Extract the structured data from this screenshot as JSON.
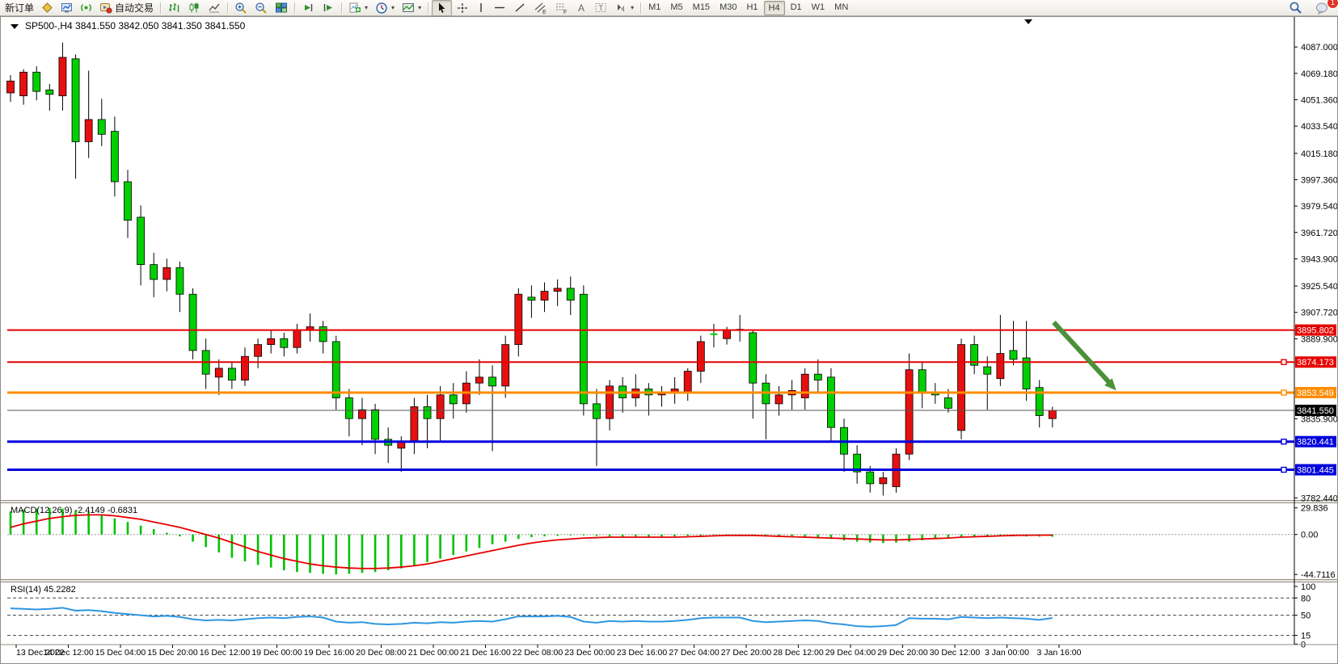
{
  "toolbar": {
    "new_order_label": "新订单",
    "autotrading_label": "自动交易",
    "chat_badge": "1",
    "timeframes": [
      "M1",
      "M5",
      "M15",
      "M30",
      "H1",
      "H4",
      "D1",
      "W1",
      "MN"
    ],
    "active_timeframe": "H4"
  },
  "chart_title": {
    "symbol_period": "SP500-,H4",
    "ohlc_quote": "3841.550 3842.050 3841.350 3841.550"
  },
  "colors": {
    "candle_up": "#e61010",
    "candle_down": "#00cf00",
    "macd_histogram": "#00c300",
    "macd_signal": "#e60000",
    "rsi_line": "#2e96e0",
    "hline_red": "#e60000",
    "hline_orange": "#ff8c00",
    "hline_blue": "#0000dc",
    "current_price_badge": "#000000",
    "arrow": "#4a9138"
  },
  "chart_data": [
    {
      "type": "candlestick",
      "title": "SP500-,H4",
      "ohlc_current": [
        3841.55,
        3842.05,
        3841.35,
        3841.55
      ],
      "ylim": [
        3781,
        4098
      ],
      "grid": false,
      "y_axis_ticks": [
        "4087.000",
        "4069.180",
        "4051.360",
        "4033.540",
        "4015.180",
        "3997.360",
        "3979.540",
        "3961.720",
        "3943.900",
        "3925.540",
        "3907.720",
        "3889.900",
        "3835.900",
        "3782.440"
      ],
      "x_labels": [
        "13 Dec 2022",
        "14 Dec 12:00",
        "15 Dec 04:00",
        "15 Dec 20:00",
        "16 Dec 12:00",
        "19 Dec 00:00",
        "19 Dec 16:00",
        "20 Dec 08:00",
        "21 Dec 00:00",
        "21 Dec 16:00",
        "22 Dec 08:00",
        "23 Dec 00:00",
        "23 Dec 16:00",
        "27 Dec 04:00",
        "27 Dec 20:00",
        "28 Dec 12:00",
        "29 Dec 04:00",
        "29 Dec 20:00",
        "30 Dec 12:00",
        "3 Jan 00:00",
        "3 Jan 16:00"
      ],
      "hlines": [
        {
          "value": 3895.802,
          "label": "3895.802",
          "color": "#e60000",
          "width": 2,
          "marker": false,
          "current": false
        },
        {
          "value": 3874.173,
          "label": "3874.173",
          "color": "#e60000",
          "width": 2,
          "marker": true,
          "current": false
        },
        {
          "value": 3853.549,
          "label": "3853.549",
          "color": "#ff8c00",
          "width": 3,
          "marker": true,
          "current": false
        },
        {
          "value": 3841.55,
          "label": "3841.550",
          "color": "#000000",
          "width": 1,
          "marker": false,
          "current": true
        },
        {
          "value": 3820.441,
          "label": "3820.441",
          "color": "#0000dc",
          "width": 3,
          "marker": true,
          "current": false
        },
        {
          "value": 3801.445,
          "label": "3801.445",
          "color": "#0000dc",
          "width": 3,
          "marker": true,
          "current": false
        }
      ],
      "annotations": [
        {
          "type": "arrow",
          "from_bar": 80.1,
          "from_price": 3901,
          "to_bar": 84.9,
          "to_price": 3855,
          "color": "#4a9138"
        }
      ],
      "candles": [
        [
          4056,
          4068,
          4050,
          4064
        ],
        [
          4054,
          4072,
          4048,
          4070
        ],
        [
          4070,
          4074,
          4051,
          4057
        ],
        [
          4058,
          4062,
          4044,
          4055
        ],
        [
          4054,
          4090,
          4044,
          4080
        ],
        [
          4079,
          4082,
          3998,
          4023
        ],
        [
          4023,
          4071,
          4012,
          4038
        ],
        [
          4038,
          4052,
          4020,
          4028
        ],
        [
          4030,
          4040,
          3986,
          3996
        ],
        [
          3996,
          4004,
          3958,
          3970
        ],
        [
          3972,
          3980,
          3926,
          3940
        ],
        [
          3940,
          3948,
          3918,
          3930
        ],
        [
          3930,
          3944,
          3922,
          3938
        ],
        [
          3938,
          3942,
          3908,
          3920
        ],
        [
          3920,
          3924,
          3876,
          3882
        ],
        [
          3882,
          3890,
          3856,
          3866
        ],
        [
          3864,
          3876,
          3852,
          3870
        ],
        [
          3870,
          3874,
          3856,
          3862
        ],
        [
          3862,
          3884,
          3858,
          3878
        ],
        [
          3878,
          3890,
          3870,
          3886
        ],
        [
          3886,
          3896,
          3880,
          3890
        ],
        [
          3890,
          3894,
          3878,
          3884
        ],
        [
          3884,
          3900,
          3880,
          3896
        ],
        [
          3896,
          3907,
          3888,
          3898
        ],
        [
          3898,
          3902,
          3880,
          3888
        ],
        [
          3888,
          3892,
          3842,
          3850
        ],
        [
          3850,
          3856,
          3824,
          3836
        ],
        [
          3836,
          3850,
          3818,
          3842
        ],
        [
          3842,
          3846,
          3812,
          3822
        ],
        [
          3822,
          3830,
          3806,
          3818
        ],
        [
          3816,
          3824,
          3800,
          3820
        ],
        [
          3820,
          3850,
          3812,
          3844
        ],
        [
          3844,
          3852,
          3816,
          3836
        ],
        [
          3836,
          3858,
          3820,
          3852
        ],
        [
          3852,
          3860,
          3836,
          3846
        ],
        [
          3846,
          3868,
          3840,
          3860
        ],
        [
          3860,
          3876,
          3852,
          3864
        ],
        [
          3864,
          3872,
          3814,
          3858
        ],
        [
          3858,
          3892,
          3850,
          3886
        ],
        [
          3886,
          3924,
          3878,
          3920
        ],
        [
          3918,
          3926,
          3904,
          3916
        ],
        [
          3916,
          3928,
          3908,
          3922
        ],
        [
          3922,
          3930,
          3912,
          3924
        ],
        [
          3924,
          3932,
          3906,
          3916
        ],
        [
          3920,
          3926,
          3838,
          3846
        ],
        [
          3846,
          3856,
          3804,
          3836
        ],
        [
          3836,
          3862,
          3828,
          3858
        ],
        [
          3858,
          3864,
          3840,
          3850
        ],
        [
          3850,
          3866,
          3844,
          3856
        ],
        [
          3856,
          3860,
          3838,
          3852
        ],
        [
          3852,
          3858,
          3844,
          3854
        ],
        [
          3853,
          3864,
          3846,
          3856
        ],
        [
          3854,
          3870,
          3848,
          3868
        ],
        [
          3868,
          3892,
          3860,
          3888
        ],
        [
          3893.5,
          3900,
          3884,
          3893
        ],
        [
          3890,
          3898,
          3886,
          3896
        ],
        [
          3896,
          3906,
          3888,
          3896
        ],
        [
          3894,
          3896,
          3836,
          3860
        ],
        [
          3860,
          3866,
          3822,
          3846
        ],
        [
          3846,
          3858,
          3838,
          3852
        ],
        [
          3852,
          3862,
          3842,
          3855
        ],
        [
          3850,
          3870,
          3842,
          3866
        ],
        [
          3866,
          3876,
          3854,
          3862
        ],
        [
          3864,
          3870,
          3820,
          3830
        ],
        [
          3830,
          3836,
          3800,
          3812
        ],
        [
          3812,
          3818,
          3792,
          3800
        ],
        [
          3800,
          3804,
          3786,
          3792
        ],
        [
          3792,
          3800,
          3784,
          3796
        ],
        [
          3790,
          3816,
          3786,
          3812
        ],
        [
          3812,
          3880,
          3808,
          3869
        ],
        [
          3869,
          3874,
          3843,
          3853
        ],
        [
          3853,
          3860,
          3846,
          3852
        ],
        [
          3850,
          3856,
          3840,
          3843
        ],
        [
          3828,
          3890,
          3822,
          3886
        ],
        [
          3886,
          3892,
          3866,
          3872
        ],
        [
          3871,
          3878,
          3842,
          3866
        ],
        [
          3863,
          3906,
          3858,
          3880
        ],
        [
          3882,
          3902,
          3872,
          3876
        ],
        [
          3877,
          3902,
          3848,
          3856
        ],
        [
          3857,
          3862,
          3830,
          3838
        ],
        [
          3836,
          3844,
          3830,
          3841.55
        ]
      ]
    },
    {
      "type": "bar",
      "name": "MACD(12,26,9)",
      "label": "MACD(12,26,9) -2.4149 -0.6831",
      "current_macd": -2.4149,
      "current_signal": -0.6831,
      "ylim": [
        -50,
        35
      ],
      "y_axis_ticks": [
        "29.836",
        "0.00",
        "-44.7116"
      ],
      "y_tick_values": [
        29.836,
        0,
        -44.7116
      ],
      "values": [
        26,
        28,
        29,
        29.8,
        29,
        27,
        25,
        22,
        18,
        14,
        10,
        6,
        2,
        -2,
        -8,
        -14,
        -20,
        -26,
        -30,
        -34,
        -37,
        -40,
        -42,
        -43,
        -44,
        -44.7,
        -44,
        -43,
        -42,
        -40,
        -38,
        -35,
        -31,
        -27,
        -23,
        -19,
        -15,
        -11,
        -8,
        -5,
        -3,
        -2,
        -1.5,
        -1,
        -1,
        -1.5,
        -2,
        -2.5,
        -3,
        -3,
        -2.5,
        -2,
        -1.5,
        -1,
        -0.5,
        -0.5,
        -1,
        -1.5,
        -2,
        -2.5,
        -3,
        -3.5,
        -4,
        -5,
        -6.5,
        -8,
        -9,
        -9.5,
        -9,
        -8,
        -6.5,
        -5,
        -4,
        -3.5,
        -3,
        -2.5,
        -2,
        -2,
        -2.2,
        -2.3,
        -2.41
      ],
      "signal": [
        8,
        12,
        15,
        18,
        20,
        21.5,
        22,
        22,
        21,
        19,
        17,
        14,
        11,
        8,
        4,
        0,
        -4,
        -9,
        -14,
        -19,
        -23,
        -27,
        -30,
        -33,
        -35,
        -36.5,
        -37.5,
        -38,
        -38,
        -37.5,
        -36.5,
        -35,
        -33,
        -30,
        -27,
        -24,
        -21,
        -18,
        -15,
        -12,
        -9.5,
        -7.5,
        -6,
        -5,
        -4,
        -3.5,
        -3,
        -3,
        -3,
        -3,
        -3,
        -3,
        -2.5,
        -2,
        -1.5,
        -1,
        -1,
        -1,
        -1.5,
        -2,
        -2.5,
        -3,
        -3.5,
        -4,
        -4.5,
        -5,
        -5.5,
        -6,
        -6,
        -5.5,
        -5,
        -4.5,
        -4,
        -3,
        -2.5,
        -2,
        -1.5,
        -1,
        -0.8,
        -0.7,
        -0.68
      ]
    },
    {
      "type": "line",
      "name": "RSI(14)",
      "label": "RSI(14) 45.2282",
      "current_value": 45.2282,
      "ylim": [
        -1,
        107
      ],
      "levels": [
        80,
        50,
        15
      ],
      "y_axis_ticks": [
        "100",
        "80",
        "50",
        "15",
        "0"
      ],
      "y_tick_values": [
        100,
        80,
        50,
        15,
        0
      ],
      "values": [
        62,
        61,
        60,
        61,
        63,
        58,
        59,
        57,
        54,
        52,
        50,
        48,
        49,
        47,
        43,
        41,
        42,
        41,
        43,
        45,
        46,
        45,
        47,
        48,
        46,
        39,
        37,
        38,
        35,
        34,
        35,
        37,
        36,
        38,
        37,
        39,
        40,
        39,
        43,
        48,
        48,
        48,
        49,
        47,
        39,
        37,
        40,
        39,
        40,
        39,
        39,
        40,
        42,
        45,
        46,
        46,
        46,
        40,
        38,
        39,
        40,
        41,
        40,
        36,
        34,
        31,
        30,
        31,
        33,
        45,
        44,
        44,
        43,
        47,
        46,
        45,
        46,
        45,
        44,
        42,
        45.23
      ]
    }
  ]
}
